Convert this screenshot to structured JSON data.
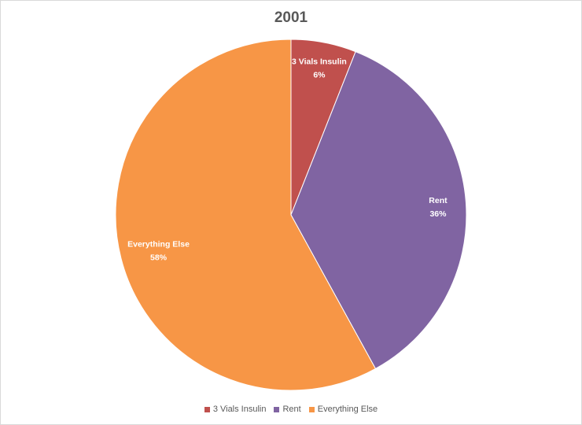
{
  "chart_data": {
    "type": "pie",
    "title": "2001",
    "categories": [
      "3 Vials Insulin",
      "Rent",
      "Everything Else"
    ],
    "values": [
      6,
      36,
      58
    ],
    "value_labels": [
      "6%",
      "36%",
      "58%"
    ],
    "colors": [
      "#C0504D",
      "#8064A2",
      "#F79646"
    ],
    "legend": "bottom"
  }
}
